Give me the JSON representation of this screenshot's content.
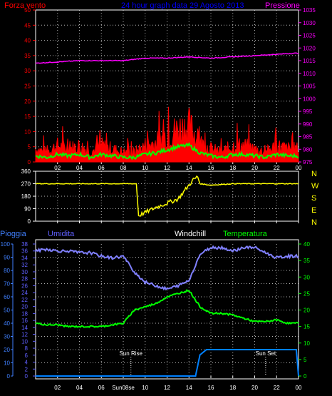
{
  "header": {
    "left_label": "Forza vento",
    "center_label": "24 hour graph data   29 Agosto 2013",
    "right_label": "Pressione"
  },
  "panel2_labels": {
    "left": "",
    "right": ""
  },
  "panel3_labels": {
    "pioggia": "Pioggia",
    "umidita": "Umidita",
    "windchill": "Windchill",
    "temperatura": "Temperatura",
    "sun_rise": "Sun Rise",
    "sun_set": "Sun Set"
  },
  "colors": {
    "wind_gust": "#ff0000",
    "wind_avg": "#00ff00",
    "pressure": "#ff00ff",
    "direction": "#ffff00",
    "humidity": "#8080ff",
    "temperature": "#00ff00",
    "rain": "#0080ff",
    "rain_axis": "#4080ff",
    "humidity_axis": "#6060ff",
    "red_axis": "#ff0000",
    "grid": "#ffffff"
  },
  "chart_data": [
    {
      "type": "line",
      "panel": "wind_pressure",
      "x_ticks": [
        "02",
        "04",
        "06",
        "08",
        "10",
        "12",
        "14",
        "16",
        "18",
        "20",
        "22",
        "00"
      ],
      "left_axis": {
        "label": "Forza vento",
        "ticks": [
          0,
          5,
          10,
          15,
          20,
          25,
          30,
          35,
          40,
          45,
          50
        ],
        "ylim": [
          0,
          50
        ]
      },
      "right_axis": {
        "label": "Pressione",
        "ticks": [
          975,
          980,
          985,
          990,
          995,
          1000,
          1005,
          1010,
          1015,
          1020,
          1025,
          1030,
          1035
        ],
        "ylim": [
          975,
          1035
        ]
      },
      "series": [
        {
          "name": "Forza vento",
          "x": [
            0,
            1,
            2,
            3,
            4,
            5,
            6,
            7,
            8,
            9,
            10,
            11,
            12,
            13,
            14,
            15,
            16,
            17,
            18,
            19,
            20,
            21,
            22,
            23,
            24
          ],
          "values": [
            4,
            3,
            5,
            4,
            5,
            3,
            5,
            4,
            3,
            3,
            5,
            6,
            8,
            10,
            11,
            6,
            4,
            3,
            5,
            5,
            4,
            3,
            5,
            4,
            4
          ]
        },
        {
          "name": "Pressione",
          "x": [
            0,
            2,
            4,
            6,
            8,
            10,
            12,
            14,
            16,
            18,
            20,
            22,
            24
          ],
          "values": [
            1014,
            1014.5,
            1015,
            1015,
            1015,
            1016,
            1016,
            1016.5,
            1016,
            1016.5,
            1017,
            1017.5,
            1018
          ]
        }
      ]
    },
    {
      "type": "line",
      "panel": "wind_direction",
      "y_ticks": [
        0,
        90,
        180,
        270,
        360
      ],
      "direction_labels": [
        "N",
        "W",
        "S",
        "E",
        "N"
      ],
      "series": [
        {
          "x": [
            0,
            4,
            8,
            9.2,
            9.4,
            11,
            12,
            13,
            13.6,
            14,
            14.4,
            14.8,
            15,
            16,
            18,
            20,
            22,
            24
          ],
          "values": [
            270,
            270,
            270,
            270,
            40,
            100,
            130,
            160,
            220,
            260,
            300,
            320,
            270,
            260,
            270,
            270,
            270,
            270
          ]
        }
      ]
    },
    {
      "type": "line",
      "panel": "rain_humidity_temp",
      "left_axis_outer": {
        "label": "Pioggia",
        "ticks": [
          0,
          10,
          20,
          30,
          40,
          50,
          60,
          70,
          80,
          90,
          100
        ],
        "ylim": [
          0,
          100
        ]
      },
      "left_axis_inner": {
        "label": "Umidita",
        "ticks": [
          0,
          2,
          4,
          6,
          8,
          10,
          12,
          14,
          16,
          18,
          20,
          22,
          24,
          26,
          28,
          30,
          32,
          34,
          36,
          38
        ],
        "ylim": [
          0,
          38
        ]
      },
      "right_axis": {
        "label": "Temperatura",
        "ticks": [
          0,
          5,
          10,
          15,
          20,
          25,
          30,
          35,
          40
        ],
        "ylim": [
          0,
          40
        ]
      },
      "x_ticks": [
        "02",
        "04",
        "06",
        "Sun08se",
        "10",
        "12",
        "14",
        "16",
        "18",
        "20",
        "22",
        "00"
      ],
      "series": [
        {
          "name": "Umidita",
          "x": [
            0,
            1,
            2,
            3,
            4,
            5,
            6,
            7,
            8,
            9,
            10,
            11,
            12,
            13,
            14,
            15,
            16,
            17,
            18,
            19,
            20,
            21,
            22,
            23,
            24
          ],
          "values": [
            36,
            36.5,
            36,
            36,
            35.5,
            35.5,
            34.5,
            34,
            34.5,
            30,
            27,
            26,
            25,
            26,
            27.5,
            35,
            37,
            37,
            36,
            37,
            37,
            35.5,
            34,
            34.5,
            34.5
          ]
        },
        {
          "name": "Temperatura",
          "x": [
            0,
            1,
            2,
            3,
            4,
            5,
            6,
            7,
            8,
            9,
            10,
            11,
            12,
            13,
            14,
            15,
            16,
            17,
            18,
            19,
            20,
            21,
            22,
            23,
            24
          ],
          "values": [
            16,
            15.5,
            15.5,
            15,
            15,
            15,
            15,
            15.5,
            16,
            20,
            21,
            22,
            24,
            25,
            26,
            21,
            19,
            19,
            18.5,
            17.5,
            16.5,
            16.5,
            17,
            16,
            16
          ]
        },
        {
          "name": "Pioggia",
          "x": [
            0,
            14.6,
            14.8,
            15,
            15.6,
            16,
            17,
            18,
            20,
            22,
            23.8,
            24
          ],
          "values": [
            0,
            0,
            8,
            16,
            20,
            20,
            20,
            20,
            20,
            20,
            20,
            0
          ]
        }
      ],
      "markers": [
        {
          "label": "Sun Rise",
          "x": 8.7
        },
        {
          "label": "Sun Set",
          "x": 21
        }
      ]
    }
  ]
}
